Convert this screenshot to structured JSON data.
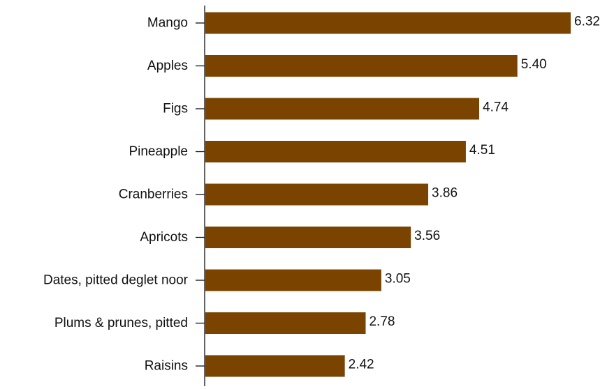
{
  "chart_data": {
    "type": "bar",
    "orientation": "horizontal",
    "categories": [
      "Mango",
      "Apples",
      "Figs",
      "Pineapple",
      "Cranberries",
      "Apricots",
      "Dates, pitted deglet noor",
      "Plums & prunes, pitted",
      "Raisins"
    ],
    "values": [
      6.32,
      5.4,
      4.74,
      4.51,
      3.86,
      3.56,
      3.05,
      2.78,
      2.42
    ],
    "value_labels": [
      "6.32",
      "5.40",
      "4.74",
      "4.51",
      "3.86",
      "3.56",
      "3.05",
      "2.78",
      "2.42"
    ],
    "xlim": [
      0,
      6.32
    ],
    "grid": false,
    "colors": {
      "bar": "#7a4300",
      "axis": "#111111"
    }
  }
}
